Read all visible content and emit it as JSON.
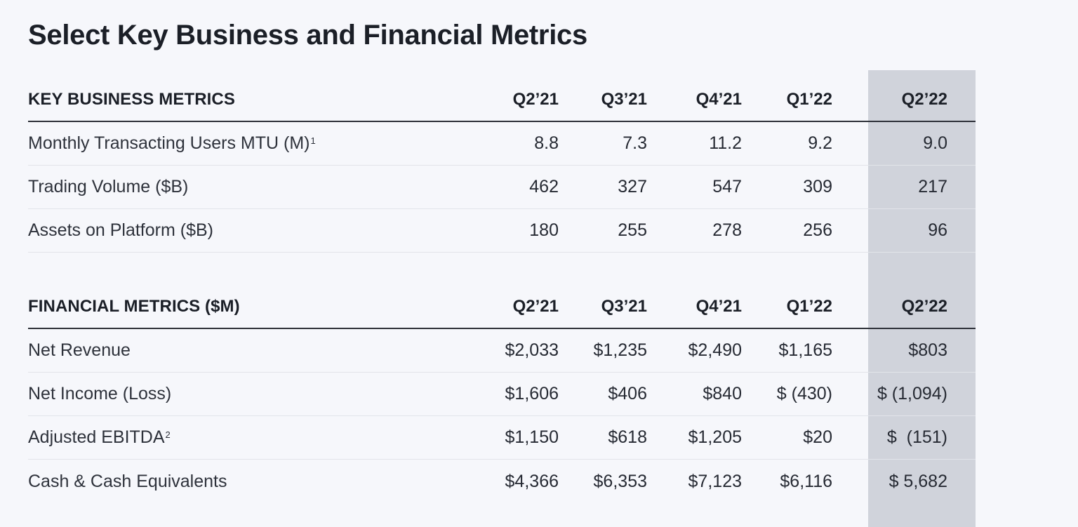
{
  "title": "Select Key Business and Financial Metrics",
  "columns": [
    "Q2’21",
    "Q3’21",
    "Q4’21",
    "Q1’22",
    "Q2’22"
  ],
  "key_business": {
    "header": "KEY BUSINESS METRICS",
    "rows": [
      {
        "label": "Monthly Transacting Users MTU (M)",
        "note": "1",
        "values": [
          "8.8",
          "7.3",
          "11.2",
          "9.2",
          "9.0"
        ]
      },
      {
        "label": "Trading Volume ($B)",
        "note": "",
        "values": [
          "462",
          "327",
          "547",
          "309",
          "217"
        ]
      },
      {
        "label": "Assets on Platform ($B)",
        "note": "",
        "values": [
          "180",
          "255",
          "278",
          "256",
          "96"
        ]
      }
    ]
  },
  "financial": {
    "header": "FINANCIAL METRICS ($M)",
    "rows": [
      {
        "label": "Net Revenue",
        "note": "",
        "values": [
          "$2,033",
          "$1,235",
          "$2,490",
          "$1,165",
          "$803"
        ]
      },
      {
        "label": "Net Income (Loss)",
        "note": "",
        "values": [
          "$1,606",
          "$406",
          "$840",
          "$ (430)",
          "$ (1,094)"
        ]
      },
      {
        "label": "Adjusted EBITDA",
        "note": "2",
        "values": [
          "$1,150",
          "$618",
          "$1,205",
          "$20",
          "$  (151)"
        ]
      },
      {
        "label": "Cash & Cash Equivalents",
        "note": "",
        "values": [
          "$4,366",
          "$6,353",
          "$7,123",
          "$6,116",
          "$ 5,682"
        ]
      }
    ]
  },
  "colors": {
    "background": "#f6f7fb",
    "highlight_column": "#d0d3db",
    "text": "#222630"
  }
}
